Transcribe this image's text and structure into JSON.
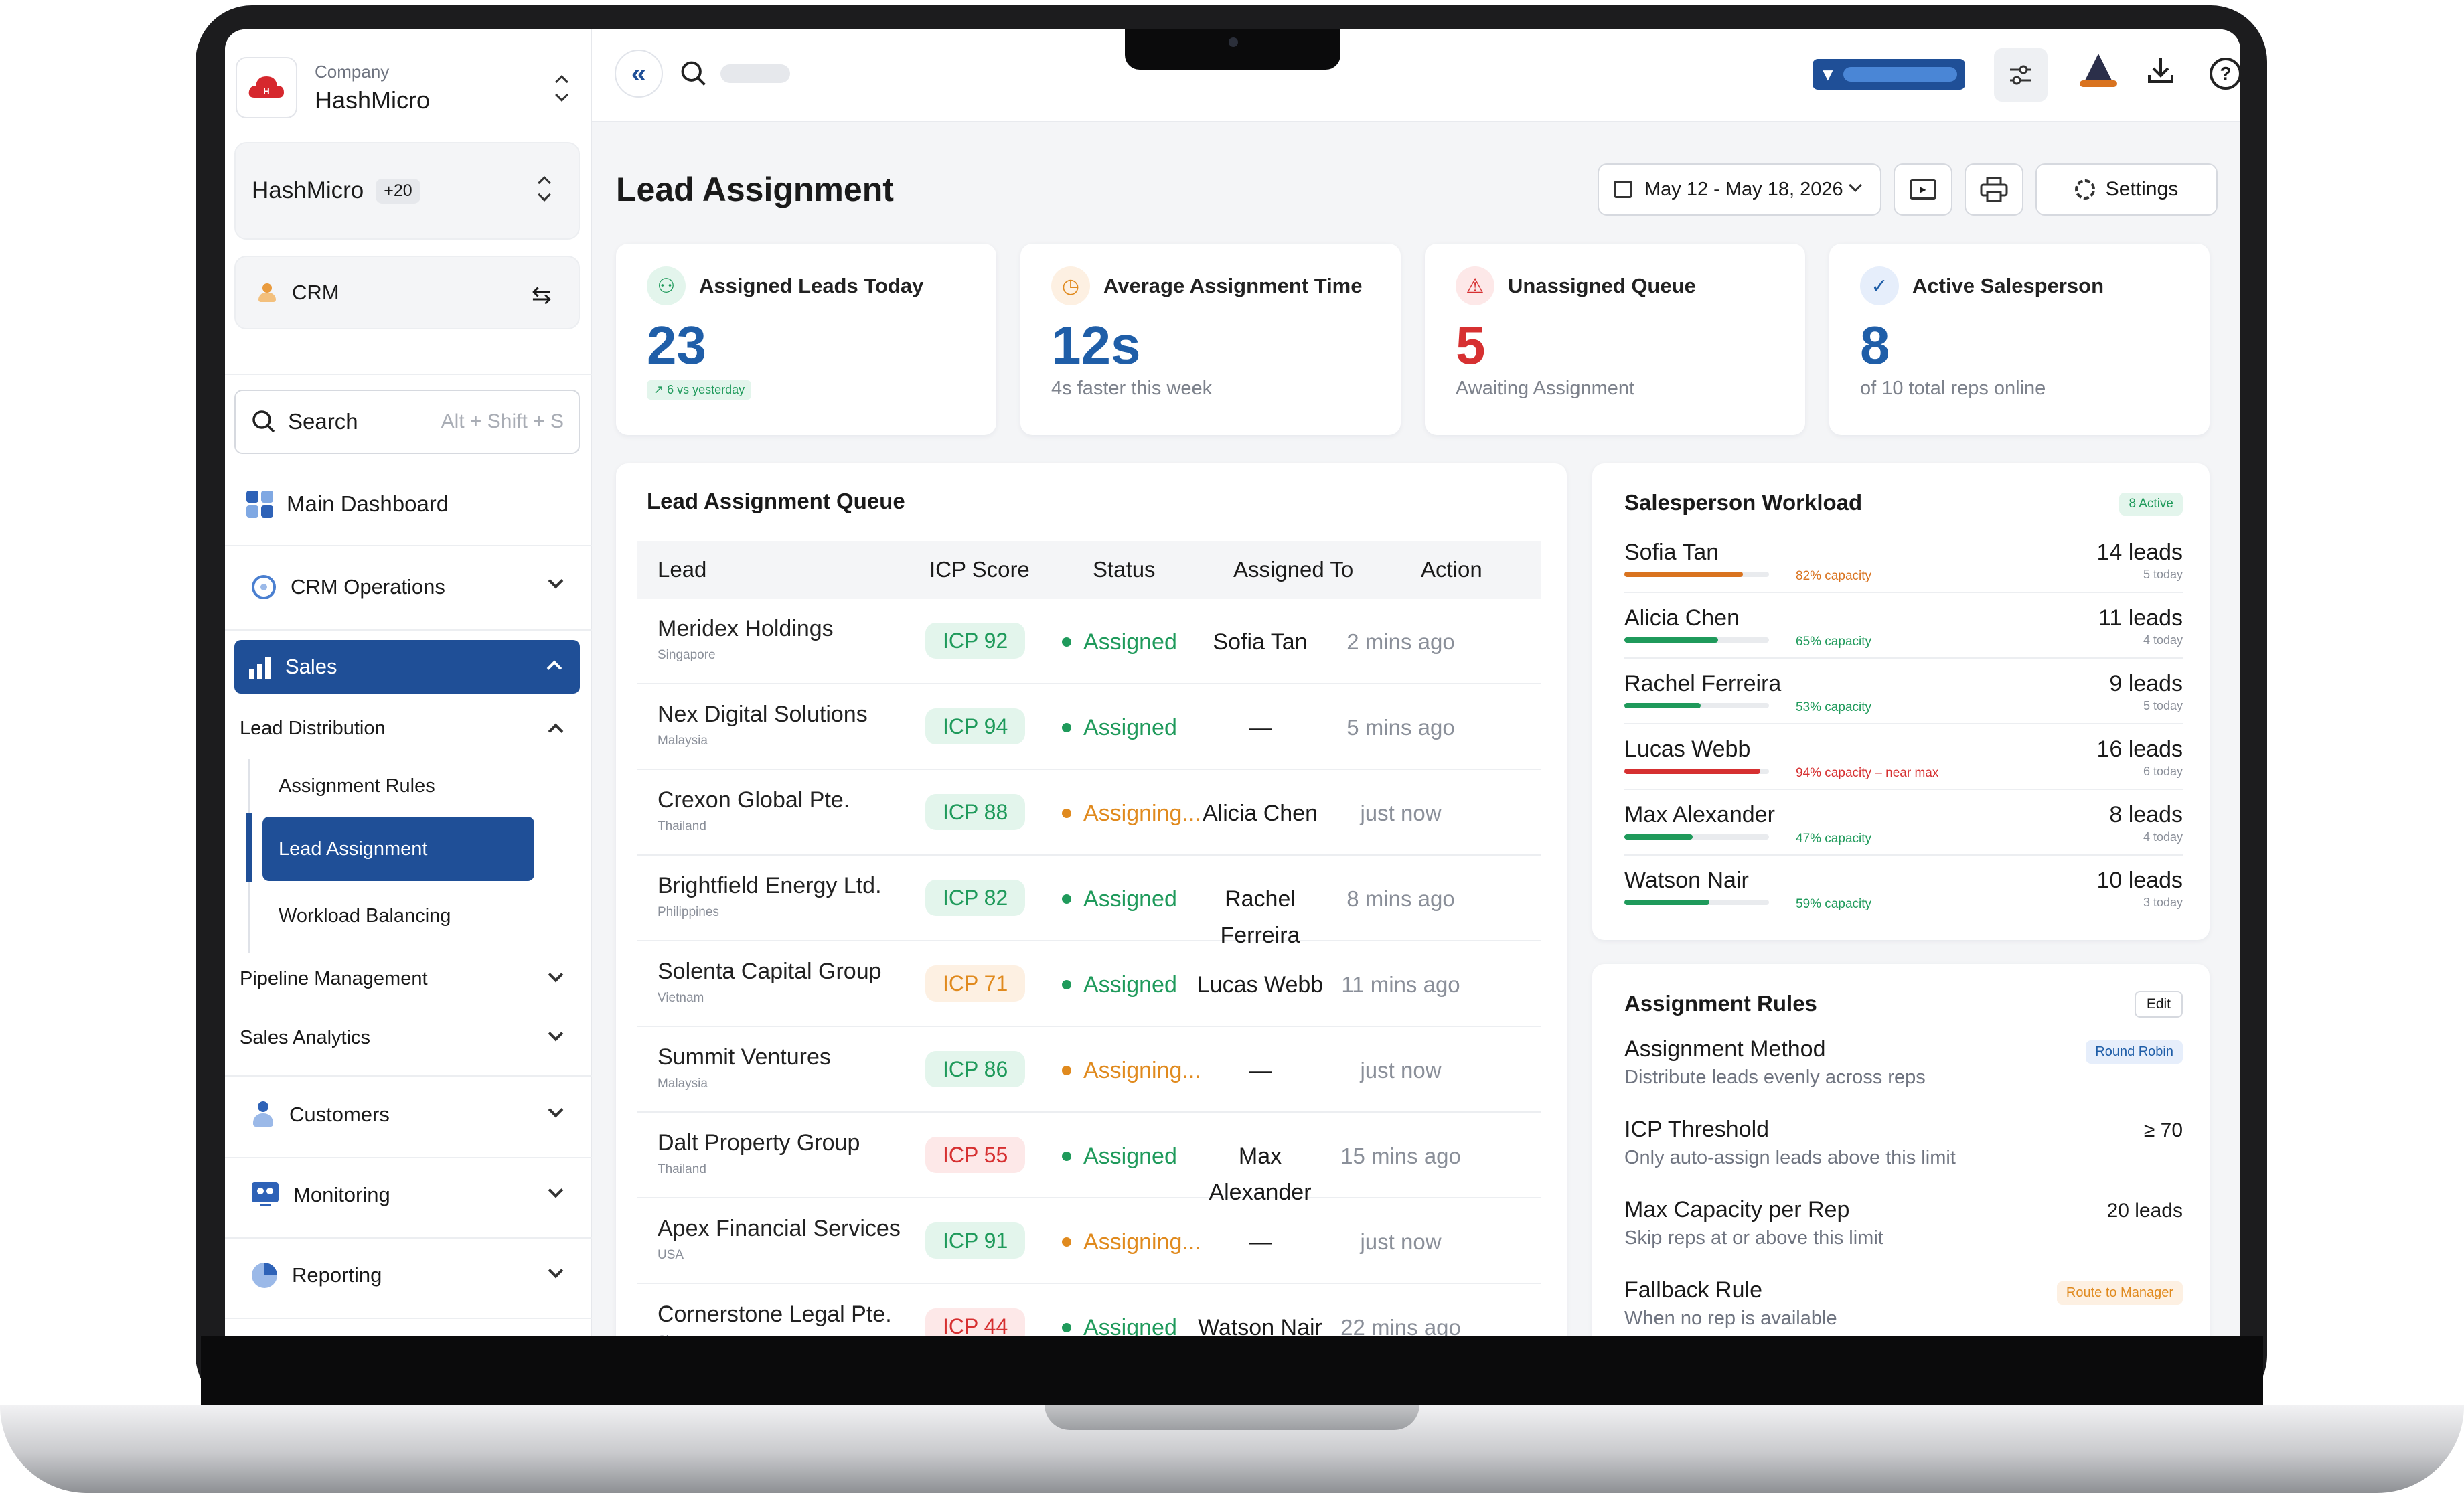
{
  "company": {
    "label": "Company",
    "name": "HashMicro"
  },
  "workspace": {
    "name": "HashMicro",
    "badge": "+20"
  },
  "module": {
    "name": "CRM"
  },
  "search": {
    "label": "Search",
    "shortcut": "Alt + Shift + S"
  },
  "sidebar": {
    "main_dashboard": "Main Dashboard",
    "crm_operations": "CRM Operations",
    "sales": "Sales",
    "lead_distribution": "Lead Distribution",
    "sub_items": [
      "Assignment Rules",
      "Lead Assignment",
      "Workload Balancing"
    ],
    "pipeline_management": "Pipeline Management",
    "sales_analytics": "Sales Analytics",
    "customers": "Customers",
    "monitoring": "Monitoring",
    "reporting": "Reporting"
  },
  "page": {
    "title": "Lead Assignment",
    "date_range": "May 12 - May 18, 2026",
    "settings_label": "Settings"
  },
  "stats": [
    {
      "label": "Assigned Leads Today",
      "value": "23",
      "sub": "6 vs yesterday",
      "color": "#1f5ea8"
    },
    {
      "label": "Average Assignment Time",
      "value": "12s",
      "sub": "4s faster this week",
      "color": "#1f5ea8"
    },
    {
      "label": "Unassigned Queue",
      "value": "5",
      "sub": "Awaiting Assignment",
      "color": "#d63031"
    },
    {
      "label": "Active Salesperson",
      "value": "8",
      "sub": "of 10 total reps online",
      "color": "#1f5ea8"
    }
  ],
  "queue": {
    "title": "Lead Assignment Queue",
    "headers": [
      "Lead",
      "ICP Score",
      "Status",
      "Assigned To",
      "Action"
    ],
    "rows": [
      {
        "lead": "Meridex Holdings",
        "loc": "Singapore",
        "icp": "ICP 92",
        "icp_color": "green",
        "status": "Assigned",
        "status_color": "#1f9a5b",
        "assigned": "Sofia Tan",
        "action": "2 mins ago"
      },
      {
        "lead": "Nex Digital Solutions",
        "loc": "Malaysia",
        "icp": "ICP 94",
        "icp_color": "green",
        "status": "Assigned",
        "status_color": "#1f9a5b",
        "assigned": "—",
        "action": "5 mins ago"
      },
      {
        "lead": "Crexon Global Pte.",
        "loc": "Thailand",
        "icp": "ICP 88",
        "icp_color": "green",
        "status": "Assigning...",
        "status_color": "#e08a1e",
        "assigned": "Alicia Chen",
        "action": "just now"
      },
      {
        "lead": "Brightfield Energy Ltd.",
        "loc": "Philippines",
        "icp": "ICP 82",
        "icp_color": "green",
        "status": "Assigned",
        "status_color": "#1f9a5b",
        "assigned": "Rachel Ferreira",
        "action": "8 mins ago"
      },
      {
        "lead": "Solenta Capital Group",
        "loc": "Vietnam",
        "icp": "ICP 71",
        "icp_color": "orange",
        "status": "Assigned",
        "status_color": "#1f9a5b",
        "assigned": "Lucas Webb",
        "action": "11 mins ago"
      },
      {
        "lead": "Summit Ventures",
        "loc": "Malaysia",
        "icp": "ICP 86",
        "icp_color": "green",
        "status": "Assigning...",
        "status_color": "#e08a1e",
        "assigned": "—",
        "action": "just now"
      },
      {
        "lead": "Dalt Property Group",
        "loc": "Thailand",
        "icp": "ICP 55",
        "icp_color": "red",
        "status": "Assigned",
        "status_color": "#1f9a5b",
        "assigned": "Max Alexander",
        "action": "15 mins ago"
      },
      {
        "lead": "Apex Financial Services",
        "loc": "USA",
        "icp": "ICP 91",
        "icp_color": "green",
        "status": "Assigning...",
        "status_color": "#e08a1e",
        "assigned": "—",
        "action": "just now"
      },
      {
        "lead": "Cornerstone Legal Pte.",
        "loc": "Singapore",
        "icp": "ICP 44",
        "icp_color": "red",
        "status": "Assigned",
        "status_color": "#1f9a5b",
        "assigned": "Watson Nair",
        "action": "22 mins ago"
      }
    ]
  },
  "workload": {
    "title": "Salesperson Workload",
    "badge": "8 Active",
    "rows": [
      {
        "name": "Sofia Tan",
        "capacity": "82% capacity",
        "pct": 82,
        "color": "#d9731f",
        "leads": "14 leads",
        "today": "5 today"
      },
      {
        "name": "Alicia Chen",
        "capacity": "65% capacity",
        "pct": 65,
        "color": "#1f9a5b",
        "leads": "11 leads",
        "today": "4 today"
      },
      {
        "name": "Rachel Ferreira",
        "capacity": "53% capacity",
        "pct": 53,
        "color": "#1f9a5b",
        "leads": "9 leads",
        "today": "5 today"
      },
      {
        "name": "Lucas Webb",
        "capacity": "94% capacity – near max",
        "pct": 94,
        "color": "#d63031",
        "leads": "16 leads",
        "today": "6 today"
      },
      {
        "name": "Max Alexander",
        "capacity": "47% capacity",
        "pct": 47,
        "color": "#1f9a5b",
        "leads": "8 leads",
        "today": "4 today"
      },
      {
        "name": "Watson Nair",
        "capacity": "59% capacity",
        "pct": 59,
        "color": "#1f9a5b",
        "leads": "10 leads",
        "today": "3 today"
      }
    ]
  },
  "rules": {
    "title": "Assignment Rules",
    "edit_label": "Edit",
    "items": [
      {
        "title": "Assignment Method",
        "desc": "Distribute leads evenly across reps",
        "value": "Round Robin"
      },
      {
        "title": "ICP Threshold",
        "desc": "Only auto-assign leads above this limit",
        "value": "≥ 70"
      },
      {
        "title": "Max Capacity per Rep",
        "desc": "Skip reps at or above this limit",
        "value": "20 leads"
      },
      {
        "title": "Fallback Rule",
        "desc": "When no rep is available",
        "value": "Route to Manager"
      }
    ]
  },
  "colors": {
    "accent": "#1f4f97",
    "green": "#1f9a5b",
    "orange": "#e08a1e",
    "red": "#d63031"
  }
}
